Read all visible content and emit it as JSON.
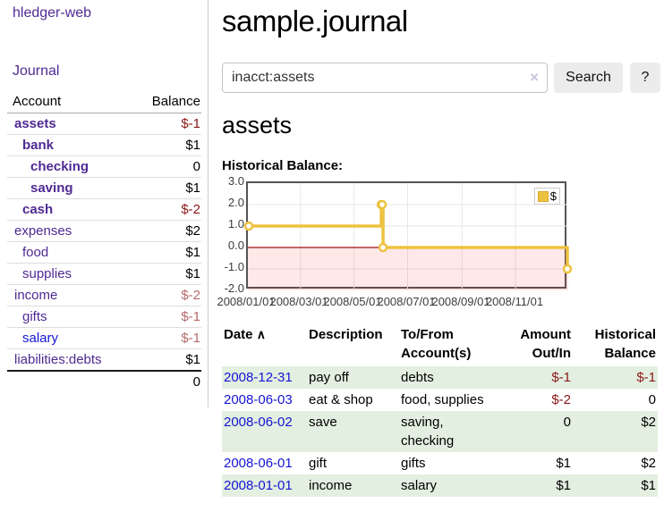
{
  "app": {
    "title": "hledger-web"
  },
  "colors": {
    "link_purple": "#4f2a93",
    "link_blue": "#1515d6",
    "negative_strong": "#8b1717",
    "negative_soft": "#b56a6a",
    "row_stripe_green": "#e3efe0",
    "button_gray": "#ececec",
    "chart_line_yellow": "#EDC240",
    "chart_zero_line_red": "#a01010",
    "chart_negative_region_pink": "rgba(255,0,0,0.09)",
    "chart_border_gray": "#545454",
    "chart_gridline": "#e7e7e7"
  },
  "sidebar": {
    "journal_link": "Journal",
    "headers": {
      "account": "Account",
      "balance": "Balance"
    },
    "accounts": [
      {
        "name": "assets",
        "balance": "$-1",
        "depth": 1,
        "bold": true
      },
      {
        "name": "bank",
        "balance": "$1",
        "depth": 2,
        "bold": true
      },
      {
        "name": "checking",
        "balance": "0",
        "depth": 3,
        "bold": true
      },
      {
        "name": "saving",
        "balance": "$1",
        "depth": 3,
        "bold": true
      },
      {
        "name": "cash",
        "balance": "$-2",
        "depth": 2,
        "bold": true
      },
      {
        "name": "expenses",
        "balance": "$2",
        "depth": 1,
        "bold": false
      },
      {
        "name": "food",
        "balance": "$1",
        "depth": 2,
        "bold": false
      },
      {
        "name": "supplies",
        "balance": "$1",
        "depth": 2,
        "bold": false
      },
      {
        "name": "income",
        "balance": "$-2",
        "depth": 1,
        "bold": false
      },
      {
        "name": "gifts",
        "balance": "$-1",
        "depth": 2,
        "bold": false
      },
      {
        "name": "salary",
        "balance": "$-1",
        "depth": 2,
        "bold": false
      },
      {
        "name": "liabilities:debts",
        "balance": "$1",
        "depth": 1,
        "bold": false
      }
    ],
    "total": "0"
  },
  "main": {
    "title": "sample.journal",
    "search": {
      "value": "inacct:assets",
      "clear_icon": "×",
      "search_label": "Search",
      "help_label": "?"
    },
    "account_heading": "assets",
    "chart_heading": "Historical Balance:",
    "register": {
      "headers": {
        "date": "Date",
        "sort_icon": "∧",
        "description": "Description",
        "accounts": "To/From Account(s)",
        "amount": "Amount Out/In",
        "balance": "Historical Balance"
      },
      "rows": [
        {
          "date": "2008-12-31",
          "description": "pay off",
          "accounts": "debts",
          "amount": "$-1",
          "balance": "$-1"
        },
        {
          "date": "2008-06-03",
          "description": "eat & shop",
          "accounts": "food, supplies",
          "amount": "$-2",
          "balance": "0"
        },
        {
          "date": "2008-06-02",
          "description": "save",
          "accounts": "saving, checking",
          "amount": "0",
          "balance": "$2"
        },
        {
          "date": "2008-06-01",
          "description": "gift",
          "accounts": "gifts",
          "amount": "$1",
          "balance": "$2"
        },
        {
          "date": "2008-01-01",
          "description": "income",
          "accounts": "salary",
          "amount": "$1",
          "balance": "$1"
        }
      ]
    }
  },
  "chart_data": {
    "type": "line",
    "title": "Historical Balance:",
    "step": true,
    "x_range": [
      "2008-01-01",
      "2008-12-31"
    ],
    "ylim": [
      -2,
      3
    ],
    "series": [
      {
        "name": "$",
        "color": "#EDC240",
        "points": [
          [
            "2008-01-01",
            1
          ],
          [
            "2008-06-01",
            2
          ],
          [
            "2008-06-02",
            2
          ],
          [
            "2008-06-03",
            0
          ],
          [
            "2008-12-31",
            -1
          ]
        ]
      }
    ],
    "x_ticks": [
      "2008/01/01",
      "2008/03/01",
      "2008/05/01",
      "2008/07/01",
      "2008/09/01",
      "2008/11/01"
    ],
    "y_ticks": [
      "3.0",
      "2.0",
      "1.0",
      "0.0",
      "-1.0",
      "-2.0"
    ],
    "grid": true,
    "legend_position": "top-right",
    "legend_label": "$",
    "negative_region_shaded": true
  }
}
